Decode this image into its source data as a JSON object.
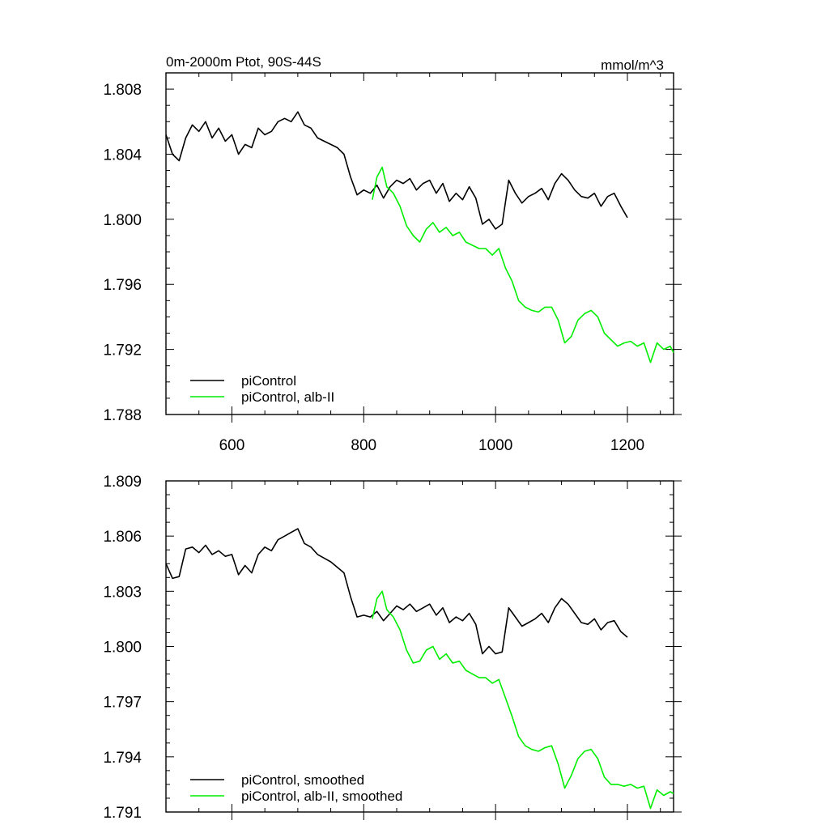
{
  "header": {
    "left_title": "0m-2000m Ptot, 90S-44S",
    "right_units": "mmol/m^3"
  },
  "colors": {
    "control": "#000000",
    "alb": "#00ee00"
  },
  "chart_data": [
    {
      "type": "line",
      "title": "",
      "xlim": [
        500,
        1270
      ],
      "ylim": [
        1.788,
        1.809
      ],
      "x_ticks": [
        600,
        800,
        1000,
        1200
      ],
      "x_tick_labels": [
        "600",
        "800",
        "1000",
        "1200"
      ],
      "y_ticks": [
        1.788,
        1.792,
        1.796,
        1.8,
        1.804,
        1.808
      ],
      "y_tick_labels": [
        "1.788",
        "1.792",
        "1.796",
        "1.800",
        "1.804",
        "1.808"
      ],
      "grid": false,
      "legend_position": "bottom-left",
      "series": [
        {
          "name": "piControl",
          "color": "#000000",
          "x": [
            500,
            510,
            520,
            530,
            540,
            550,
            560,
            570,
            580,
            590,
            600,
            610,
            620,
            630,
            640,
            650,
            660,
            670,
            680,
            690,
            700,
            710,
            720,
            730,
            740,
            750,
            760,
            770,
            780,
            790,
            800,
            810,
            820,
            830,
            840,
            850,
            860,
            870,
            880,
            890,
            900,
            910,
            920,
            930,
            940,
            950,
            960,
            970,
            980,
            990,
            1000,
            1010,
            1020,
            1030,
            1040,
            1050,
            1060,
            1070,
            1080,
            1090,
            1100,
            1110,
            1120,
            1130,
            1140,
            1150,
            1160,
            1170,
            1180,
            1190,
            1200
          ],
          "y": [
            1.8052,
            1.804,
            1.8036,
            1.805,
            1.8058,
            1.8054,
            1.806,
            1.805,
            1.8056,
            1.8048,
            1.8052,
            1.804,
            1.8046,
            1.8044,
            1.8056,
            1.8052,
            1.8054,
            1.806,
            1.8062,
            1.806,
            1.8066,
            1.8058,
            1.8056,
            1.805,
            1.8048,
            1.8046,
            1.8044,
            1.804,
            1.8026,
            1.8015,
            1.8018,
            1.8016,
            1.8021,
            1.8013,
            1.802,
            1.8024,
            1.8022,
            1.8025,
            1.8018,
            1.8022,
            1.8024,
            1.8016,
            1.8022,
            1.8011,
            1.8016,
            1.8012,
            1.802,
            1.8013,
            1.7997,
            1.8,
            1.7994,
            1.7997,
            1.8024,
            1.8016,
            1.801,
            1.8014,
            1.8016,
            1.8019,
            1.8012,
            1.8022,
            1.8028,
            1.8024,
            1.8018,
            1.8014,
            1.8013,
            1.8016,
            1.8008,
            1.8014,
            1.8016,
            1.8008,
            1.8001
          ]
        },
        {
          "name": "piControl, alb-II",
          "color": "#00ee00",
          "x": [
            813,
            820,
            828,
            835,
            845,
            855,
            865,
            875,
            885,
            895,
            905,
            915,
            925,
            935,
            945,
            955,
            965,
            975,
            985,
            995,
            1005,
            1015,
            1025,
            1035,
            1045,
            1055,
            1065,
            1075,
            1085,
            1095,
            1105,
            1115,
            1125,
            1135,
            1145,
            1155,
            1165,
            1175,
            1185,
            1195,
            1205,
            1215,
            1225,
            1235,
            1245,
            1255,
            1265,
            1270
          ],
          "y": [
            1.8012,
            1.8026,
            1.8032,
            1.802,
            1.8016,
            1.8008,
            1.7996,
            1.799,
            1.7986,
            1.7994,
            1.7998,
            1.7992,
            1.7995,
            1.799,
            1.7992,
            1.7986,
            1.7984,
            1.7982,
            1.7982,
            1.7978,
            1.7982,
            1.797,
            1.7962,
            1.795,
            1.7946,
            1.7944,
            1.7943,
            1.7946,
            1.7946,
            1.7938,
            1.7924,
            1.7928,
            1.7938,
            1.7942,
            1.7944,
            1.794,
            1.793,
            1.7926,
            1.7922,
            1.7924,
            1.7925,
            1.7922,
            1.7924,
            1.7912,
            1.7924,
            1.792,
            1.7922,
            1.7918
          ]
        }
      ]
    },
    {
      "type": "line",
      "title": "",
      "xlim": [
        500,
        1270
      ],
      "ylim": [
        1.791,
        1.809
      ],
      "x_ticks": [
        600,
        800,
        1000,
        1200
      ],
      "x_tick_labels": [],
      "y_ticks": [
        1.791,
        1.794,
        1.797,
        1.8,
        1.803,
        1.806,
        1.809
      ],
      "y_tick_labels": [
        "1.791",
        "1.794",
        "1.797",
        "1.800",
        "1.803",
        "1.806",
        "1.809"
      ],
      "grid": false,
      "legend_position": "bottom-left",
      "series": [
        {
          "name": "piControl, smoothed",
          "color": "#000000",
          "x": [
            500,
            510,
            520,
            530,
            540,
            550,
            560,
            570,
            580,
            590,
            600,
            610,
            620,
            630,
            640,
            650,
            660,
            670,
            680,
            690,
            700,
            710,
            720,
            730,
            740,
            750,
            760,
            770,
            780,
            790,
            800,
            810,
            820,
            830,
            840,
            850,
            860,
            870,
            880,
            890,
            900,
            910,
            920,
            930,
            940,
            950,
            960,
            970,
            980,
            990,
            1000,
            1010,
            1020,
            1030,
            1040,
            1050,
            1060,
            1070,
            1080,
            1090,
            1100,
            1110,
            1120,
            1130,
            1140,
            1150,
            1160,
            1170,
            1180,
            1190,
            1200
          ],
          "y": [
            1.8045,
            1.8037,
            1.8038,
            1.8053,
            1.8054,
            1.8051,
            1.8055,
            1.805,
            1.8052,
            1.8049,
            1.805,
            1.8039,
            1.8044,
            1.804,
            1.805,
            1.8054,
            1.8052,
            1.8058,
            1.806,
            1.8062,
            1.8064,
            1.8056,
            1.8054,
            1.805,
            1.8048,
            1.8046,
            1.8043,
            1.804,
            1.8027,
            1.8016,
            1.8017,
            1.8016,
            1.8019,
            1.8014,
            1.8018,
            1.8022,
            1.802,
            1.8023,
            1.8019,
            1.8021,
            1.8023,
            1.8017,
            1.8021,
            1.8013,
            1.8016,
            1.8014,
            1.8018,
            1.8012,
            1.7996,
            1.8,
            1.7996,
            1.7997,
            1.8021,
            1.8016,
            1.8011,
            1.8013,
            1.8015,
            1.8018,
            1.8013,
            1.8021,
            1.8026,
            1.8023,
            1.8018,
            1.8013,
            1.8012,
            1.8015,
            1.8009,
            1.8013,
            1.8014,
            1.8008,
            1.8005
          ]
        },
        {
          "name": "piControl, alb-II, smoothed",
          "color": "#00ee00",
          "x": [
            813,
            820,
            828,
            835,
            845,
            855,
            865,
            875,
            885,
            895,
            905,
            915,
            925,
            935,
            945,
            955,
            965,
            975,
            985,
            995,
            1005,
            1015,
            1025,
            1035,
            1045,
            1055,
            1065,
            1075,
            1085,
            1095,
            1105,
            1115,
            1125,
            1135,
            1145,
            1155,
            1165,
            1175,
            1185,
            1195,
            1205,
            1215,
            1225,
            1235,
            1245,
            1255,
            1265,
            1270
          ],
          "y": [
            1.8015,
            1.8026,
            1.803,
            1.802,
            1.8016,
            1.8009,
            1.7998,
            1.7991,
            1.7992,
            1.7998,
            1.8,
            1.7993,
            1.7996,
            1.7991,
            1.7992,
            1.7987,
            1.7985,
            1.7983,
            1.7983,
            1.798,
            1.7982,
            1.7972,
            1.7962,
            1.7951,
            1.7946,
            1.7944,
            1.7943,
            1.7945,
            1.7946,
            1.7936,
            1.7923,
            1.793,
            1.7939,
            1.7943,
            1.7944,
            1.7939,
            1.7929,
            1.7925,
            1.7925,
            1.7924,
            1.7925,
            1.7923,
            1.7924,
            1.7912,
            1.7922,
            1.7919,
            1.7921,
            1.792
          ]
        }
      ]
    }
  ]
}
